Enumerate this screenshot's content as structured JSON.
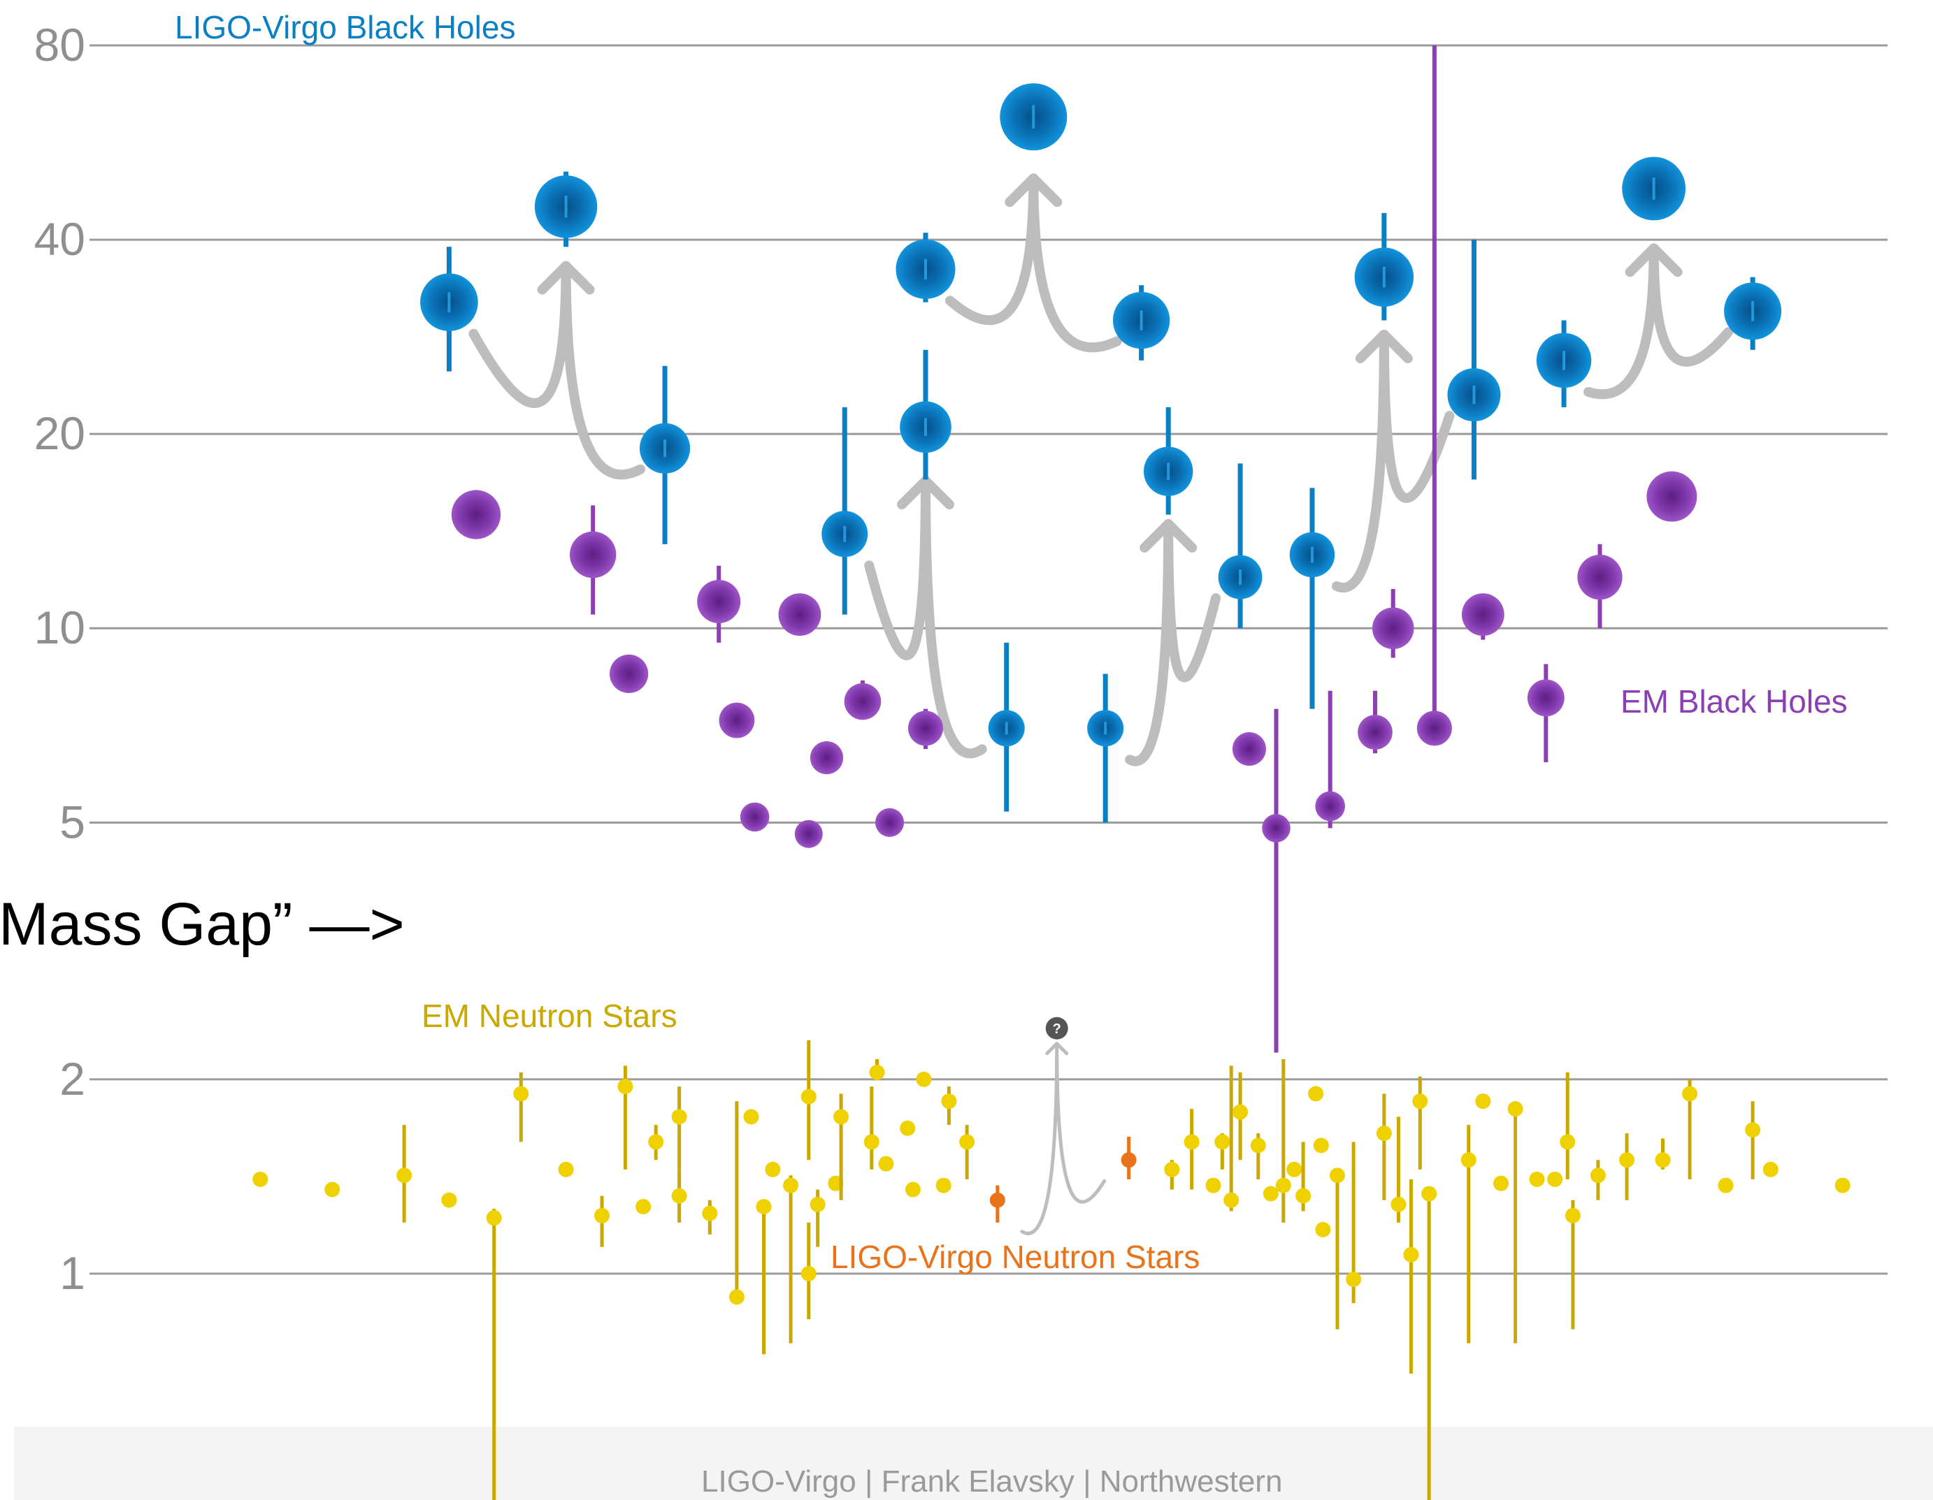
{
  "colors": {
    "ligo_bh": "#0a7fc4",
    "ligo_bh_dark": "#054f87",
    "em_bh": "#8b3fb3",
    "em_bh_dark": "#5c1f82",
    "em_ns": "#c9a800",
    "em_ns_fill": "#f0d100",
    "ligo_ns": "#e8731a",
    "merger_arrow": "#bdbdbd",
    "grid": "#9a9a9a",
    "footer_bg": "#f4f4f4"
  },
  "annotation": {
    "mass_gap": "Mass Gap” —>",
    "unknown_remnant": "?"
  },
  "footer": {
    "credit": "LIGO-Virgo | Frank Elavsky | Northwestern"
  },
  "chart_data": {
    "type": "scatter",
    "title": "",
    "xlabel": "",
    "ylabel": "",
    "yscale": "log",
    "ylim": [
      0.35,
      85
    ],
    "yticks": [
      1,
      2,
      5,
      10,
      20,
      40,
      80
    ],
    "grid": true,
    "legend": "text labels placed beside each group",
    "x_units": "object index (arbitrary ordering)",
    "series": [
      {
        "name": "LIGO-Virgo Black Holes",
        "color": "#0a7fc4",
        "points": [
          {
            "x": 20,
            "y": 32,
            "lo": 25,
            "hi": 39
          },
          {
            "x": 26.5,
            "y": 45,
            "lo": 39,
            "hi": 51
          },
          {
            "x": 32,
            "y": 19,
            "lo": 13.5,
            "hi": 25.5
          },
          {
            "x": 42,
            "y": 14,
            "lo": 10.5,
            "hi": 22
          },
          {
            "x": 46.5,
            "y": 20.5,
            "lo": 17,
            "hi": 27
          },
          {
            "x": 46.5,
            "y": 36,
            "lo": 32,
            "hi": 41
          },
          {
            "x": 51,
            "y": 7,
            "lo": 5.2,
            "hi": 9.5
          },
          {
            "x": 52.5,
            "y": 62,
            "lo": 57,
            "hi": 67
          },
          {
            "x": 56.5,
            "y": 7,
            "lo": 5,
            "hi": 8.5
          },
          {
            "x": 58.5,
            "y": 30,
            "lo": 26,
            "hi": 34
          },
          {
            "x": 60,
            "y": 17.5,
            "lo": 15,
            "hi": 22
          },
          {
            "x": 64,
            "y": 12,
            "lo": 10,
            "hi": 18
          },
          {
            "x": 68,
            "y": 13,
            "lo": 7.5,
            "hi": 16.5
          },
          {
            "x": 72,
            "y": 35,
            "lo": 30,
            "hi": 44
          },
          {
            "x": 77,
            "y": 23,
            "lo": 17,
            "hi": 40
          },
          {
            "x": 82,
            "y": 26,
            "lo": 22,
            "hi": 30
          },
          {
            "x": 87,
            "y": 48,
            "lo": 44,
            "hi": 52
          },
          {
            "x": 92.5,
            "y": 31,
            "lo": 27,
            "hi": 35
          }
        ]
      },
      {
        "name": "EM Black Holes",
        "color": "#8b3fb3",
        "points": [
          {
            "x": 21.5,
            "y": 15,
            "lo": 15,
            "hi": 15
          },
          {
            "x": 28,
            "y": 13,
            "lo": 10.5,
            "hi": 15.5
          },
          {
            "x": 30,
            "y": 8.5,
            "lo": 8.5,
            "hi": 8.5
          },
          {
            "x": 35,
            "y": 11,
            "lo": 9.5,
            "hi": 12.5
          },
          {
            "x": 36,
            "y": 7.2,
            "lo": 6.8,
            "hi": 7.6
          },
          {
            "x": 37,
            "y": 5.1,
            "lo": 5.1,
            "hi": 5.1
          },
          {
            "x": 39.5,
            "y": 10.5,
            "lo": 10.5,
            "hi": 10.5
          },
          {
            "x": 40,
            "y": 4.8,
            "lo": 4.8,
            "hi": 4.8
          },
          {
            "x": 41,
            "y": 6.3,
            "lo": 6.3,
            "hi": 6.3
          },
          {
            "x": 43,
            "y": 7.7,
            "lo": 7.3,
            "hi": 8.3
          },
          {
            "x": 44.5,
            "y": 5,
            "lo": 5,
            "hi": 5
          },
          {
            "x": 46.5,
            "y": 7,
            "lo": 6.5,
            "hi": 7.5
          },
          {
            "x": 64.5,
            "y": 6.5,
            "lo": 6.5,
            "hi": 6.5
          },
          {
            "x": 66,
            "y": 4.9,
            "lo": 2.2,
            "hi": 7.5
          },
          {
            "x": 69,
            "y": 5.3,
            "lo": 4.9,
            "hi": 8
          },
          {
            "x": 71.5,
            "y": 6.9,
            "lo": 6.4,
            "hi": 8
          },
          {
            "x": 72.5,
            "y": 10,
            "lo": 9,
            "hi": 11.5
          },
          {
            "x": 74.8,
            "y": 7,
            "lo": 7,
            "hi": 80
          },
          {
            "x": 77.5,
            "y": 10.5,
            "lo": 9.6,
            "hi": 11.3
          },
          {
            "x": 81,
            "y": 7.8,
            "lo": 6.2,
            "hi": 8.8
          },
          {
            "x": 84,
            "y": 12,
            "lo": 10,
            "hi": 13.5
          },
          {
            "x": 88,
            "y": 16,
            "lo": 16,
            "hi": 16
          }
        ]
      },
      {
        "name": "EM Neutron Stars",
        "color": "#c9a800",
        "points": [
          {
            "x": 9.5,
            "y": 1.4
          },
          {
            "x": 13.5,
            "y": 1.35
          },
          {
            "x": 17.5,
            "y": 1.42,
            "lo": 1.2,
            "hi": 1.7
          },
          {
            "x": 20,
            "y": 1.3
          },
          {
            "x": 22.5,
            "y": 1.22,
            "lo": 0.35,
            "hi": 1.26
          },
          {
            "x": 24,
            "y": 1.9,
            "lo": 1.6,
            "hi": 2.05
          },
          {
            "x": 26.5,
            "y": 1.45
          },
          {
            "x": 28.5,
            "y": 1.23,
            "lo": 1.1,
            "hi": 1.32
          },
          {
            "x": 29.8,
            "y": 1.95,
            "lo": 1.45,
            "hi": 2.1
          },
          {
            "x": 30.8,
            "y": 1.27
          },
          {
            "x": 31.5,
            "y": 1.6,
            "lo": 1.5,
            "hi": 1.7
          },
          {
            "x": 32.8,
            "y": 1.32,
            "lo": 1.2,
            "hi": 1.45
          },
          {
            "x": 32.8,
            "y": 1.75,
            "lo": 1.45,
            "hi": 1.95
          },
          {
            "x": 34.5,
            "y": 1.24,
            "lo": 1.15,
            "hi": 1.3
          },
          {
            "x": 36,
            "y": 0.92,
            "lo": 0.9,
            "hi": 1.85
          },
          {
            "x": 36.8,
            "y": 1.75
          },
          {
            "x": 37.5,
            "y": 1.27,
            "lo": 0.75,
            "hi": 1.3
          },
          {
            "x": 38,
            "y": 1.45
          },
          {
            "x": 39,
            "y": 1.37,
            "lo": 0.78,
            "hi": 1.42
          },
          {
            "x": 40,
            "y": 1.88,
            "lo": 1.5,
            "hi": 2.3
          },
          {
            "x": 40,
            "y": 1,
            "lo": 0.85,
            "hi": 1.2
          },
          {
            "x": 40.5,
            "y": 1.28,
            "lo": 1.1,
            "hi": 1.35
          },
          {
            "x": 41.5,
            "y": 1.38
          },
          {
            "x": 41.8,
            "y": 1.75,
            "lo": 1.3,
            "hi": 1.9
          },
          {
            "x": 43.5,
            "y": 1.6,
            "lo": 1.45,
            "hi": 1.95
          },
          {
            "x": 43.8,
            "y": 2.05,
            "lo": 2,
            "hi": 2.15
          },
          {
            "x": 44.3,
            "y": 1.48
          },
          {
            "x": 45.5,
            "y": 1.68
          },
          {
            "x": 45.8,
            "y": 1.35
          },
          {
            "x": 46.4,
            "y": 2
          },
          {
            "x": 47.5,
            "y": 1.37
          },
          {
            "x": 47.8,
            "y": 1.85,
            "lo": 1.7,
            "hi": 1.95
          },
          {
            "x": 48.8,
            "y": 1.6,
            "lo": 1.4,
            "hi": 1.7
          },
          {
            "x": 60.2,
            "y": 1.45,
            "lo": 1.35,
            "hi": 1.5
          },
          {
            "x": 61.3,
            "y": 1.6,
            "lo": 1.35,
            "hi": 1.8
          },
          {
            "x": 62.5,
            "y": 1.37
          },
          {
            "x": 63,
            "y": 1.6,
            "lo": 1.45,
            "hi": 1.65
          },
          {
            "x": 63.5,
            "y": 1.3,
            "lo": 1.25,
            "hi": 2.1
          },
          {
            "x": 64,
            "y": 1.78,
            "lo": 1.5,
            "hi": 2.05
          },
          {
            "x": 65,
            "y": 1.58,
            "lo": 1.4,
            "hi": 1.65
          },
          {
            "x": 65.7,
            "y": 1.33
          },
          {
            "x": 66.4,
            "y": 1.37,
            "lo": 1.2,
            "hi": 2.15
          },
          {
            "x": 67,
            "y": 1.45
          },
          {
            "x": 67.5,
            "y": 1.32,
            "lo": 1.25,
            "hi": 1.6
          },
          {
            "x": 68.2,
            "y": 1.9
          },
          {
            "x": 68.5,
            "y": 1.58
          },
          {
            "x": 68.6,
            "y": 1.17
          },
          {
            "x": 69.4,
            "y": 1.42,
            "lo": 0.82,
            "hi": 1.45
          },
          {
            "x": 70.3,
            "y": 0.98,
            "lo": 0.9,
            "hi": 1.6
          },
          {
            "x": 72,
            "y": 1.65,
            "lo": 1.3,
            "hi": 1.9
          },
          {
            "x": 72.8,
            "y": 1.28,
            "lo": 1.2,
            "hi": 1.75
          },
          {
            "x": 73.5,
            "y": 1.07,
            "lo": 0.7,
            "hi": 1.4
          },
          {
            "x": 74,
            "y": 1.85,
            "lo": 1.45,
            "hi": 2.02
          },
          {
            "x": 74.5,
            "y": 1.33,
            "lo": 0.36,
            "hi": 1.33
          },
          {
            "x": 76.7,
            "y": 1.5,
            "lo": 0.78,
            "hi": 1.7
          },
          {
            "x": 77.5,
            "y": 1.85
          },
          {
            "x": 78.5,
            "y": 1.38
          },
          {
            "x": 79.3,
            "y": 1.8,
            "lo": 0.78,
            "hi": 1.85
          },
          {
            "x": 80.5,
            "y": 1.4
          },
          {
            "x": 81.5,
            "y": 1.4
          },
          {
            "x": 82.2,
            "y": 1.6,
            "lo": 1.4,
            "hi": 2.05
          },
          {
            "x": 82.5,
            "y": 1.23,
            "lo": 0.82,
            "hi": 1.3
          },
          {
            "x": 83.9,
            "y": 1.42,
            "lo": 1.3,
            "hi": 1.5
          },
          {
            "x": 85.5,
            "y": 1.5,
            "lo": 1.3,
            "hi": 1.65
          },
          {
            "x": 87.5,
            "y": 1.5,
            "lo": 1.45,
            "hi": 1.62
          },
          {
            "x": 89,
            "y": 1.9,
            "lo": 1.4,
            "hi": 2
          },
          {
            "x": 91,
            "y": 1.37
          },
          {
            "x": 92.5,
            "y": 1.67,
            "lo": 1.4,
            "hi": 1.85
          },
          {
            "x": 93.5,
            "y": 1.45
          },
          {
            "x": 97.5,
            "y": 1.37
          }
        ]
      },
      {
        "name": "LIGO-Virgo Neutron Stars",
        "color": "#e8731a",
        "points": [
          {
            "x": 50.5,
            "y": 1.3,
            "lo": 1.2,
            "hi": 1.37
          },
          {
            "x": 57.8,
            "y": 1.5,
            "lo": 1.4,
            "hi": 1.63
          }
        ]
      }
    ],
    "mergers": [
      {
        "from": [
          [
            20,
            32
          ],
          [
            32,
            19
          ]
        ],
        "to": [
          26.5,
          45
        ]
      },
      {
        "from": [
          [
            42,
            14
          ],
          [
            51,
            7
          ]
        ],
        "to": [
          46.5,
          20.5
        ]
      },
      {
        "from": [
          [
            46.5,
            36
          ],
          [
            58.5,
            30
          ]
        ],
        "to": [
          52.5,
          62
        ]
      },
      {
        "from": [
          [
            56.5,
            7
          ],
          [
            64,
            12
          ]
        ],
        "to": [
          60,
          17.5
        ]
      },
      {
        "from": [
          [
            68,
            13
          ],
          [
            77,
            23
          ]
        ],
        "to": [
          72,
          35
        ]
      },
      {
        "from": [
          [
            82,
            26
          ],
          [
            92.5,
            31
          ]
        ],
        "to": [
          87,
          48
        ]
      },
      {
        "from": [
          [
            50.5,
            1.3
          ],
          [
            57.8,
            1.5
          ]
        ],
        "to": [
          53.8,
          2.4
        ],
        "unknown": true
      }
    ],
    "labels": {
      "ligo_bh": "LIGO-Virgo Black Holes",
      "em_bh": "EM Black Holes",
      "em_ns": "EM Neutron Stars",
      "ligo_ns": "LIGO-Virgo Neutron Stars"
    }
  }
}
